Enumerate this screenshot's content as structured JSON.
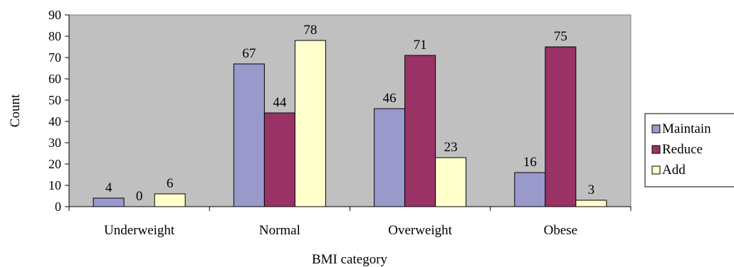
{
  "chart_data": {
    "type": "bar",
    "title": "",
    "xlabel": "BMI category",
    "ylabel": "Count",
    "ylim": [
      0,
      90
    ],
    "yticks": [
      0,
      10,
      20,
      30,
      40,
      50,
      60,
      70,
      80,
      90
    ],
    "grid": false,
    "legend_position": "right",
    "plot_background": "#c0c0c0",
    "categories": [
      "Underweight",
      "Normal",
      "Overweight",
      "Obese"
    ],
    "series": [
      {
        "name": "Maintain",
        "color": "#9999cc",
        "values": [
          4,
          67,
          46,
          16
        ]
      },
      {
        "name": "Reduce",
        "color": "#993366",
        "values": [
          0,
          44,
          71,
          75
        ]
      },
      {
        "name": "Add",
        "color": "#ffffcc",
        "values": [
          6,
          78,
          23,
          3
        ]
      }
    ]
  }
}
